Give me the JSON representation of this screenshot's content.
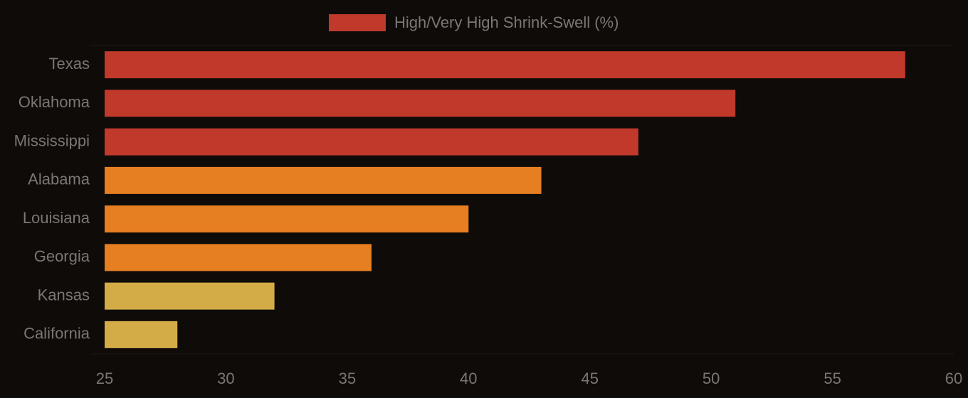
{
  "chart_data": {
    "type": "bar",
    "orientation": "horizontal",
    "categories": [
      "Texas",
      "Oklahoma",
      "Mississippi",
      "Alabama",
      "Louisiana",
      "Georgia",
      "Kansas",
      "California"
    ],
    "series": [
      {
        "name": "High/Very High Shrink-Swell (%)",
        "color": "#c0392b",
        "colors": [
          "#c0392b",
          "#c0392b",
          "#c0392b",
          "#e67e22",
          "#e67e22",
          "#e67e22",
          "#d4ac47",
          "#d4ac47"
        ],
        "values": [
          58,
          51,
          47,
          43,
          40,
          36,
          32,
          28
        ]
      }
    ],
    "xlim": [
      25,
      60
    ],
    "xticks": [
      25,
      30,
      35,
      40,
      45,
      50,
      55,
      60
    ],
    "legend": "top"
  }
}
